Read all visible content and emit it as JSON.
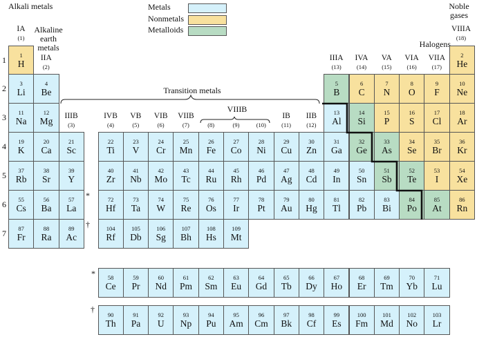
{
  "legend": [
    {
      "label": "Metals",
      "category": "metal",
      "color": "#d5f1fb"
    },
    {
      "label": "Nonmetals",
      "category": "nonmetal",
      "color": "#f8e19e"
    },
    {
      "label": "Metalloids",
      "category": "metalloid",
      "color": "#b8dcc3"
    }
  ],
  "family_labels": {
    "alkali": "Alkali metals",
    "alkaline_earth": "Alkaline earth metals",
    "transition": "Transition metals",
    "halogens": "Halogens",
    "noble_gases": "Noble gases"
  },
  "groups": [
    {
      "group": 1,
      "roman": "IA",
      "number": "(1)"
    },
    {
      "group": 2,
      "roman": "IIA",
      "number": "(2)"
    },
    {
      "group": 3,
      "roman": "IIIB",
      "number": "(3)"
    },
    {
      "group": 4,
      "roman": "IVB",
      "number": "(4)"
    },
    {
      "group": 5,
      "roman": "VB",
      "number": "(5)"
    },
    {
      "group": 6,
      "roman": "VIB",
      "number": "(6)"
    },
    {
      "group": 7,
      "roman": "VIIB",
      "number": "(7)"
    },
    {
      "group": 8,
      "roman": "",
      "number": "(8)"
    },
    {
      "group": 9,
      "roman": "",
      "number": "(9)"
    },
    {
      "group": 10,
      "roman": "",
      "number": "(10)"
    },
    {
      "group": 11,
      "roman": "IB",
      "number": "(11)"
    },
    {
      "group": 12,
      "roman": "IIB",
      "number": "(12)"
    },
    {
      "group": 13,
      "roman": "IIIA",
      "number": "(13)"
    },
    {
      "group": 14,
      "roman": "IVA",
      "number": "(14)"
    },
    {
      "group": 15,
      "roman": "VA",
      "number": "(15)"
    },
    {
      "group": 16,
      "roman": "VIA",
      "number": "(16)"
    },
    {
      "group": 17,
      "roman": "VIIA",
      "number": "(17)"
    },
    {
      "group": 18,
      "roman": "VIIIA",
      "number": "(18)"
    }
  ],
  "viiib_label": "VIIIB",
  "periods": [
    "1",
    "2",
    "3",
    "4",
    "5",
    "6",
    "7"
  ],
  "series_marks": {
    "lanthanide": "*",
    "actinide": "†"
  },
  "elements": [
    {
      "z": 1,
      "s": "H",
      "p": 1,
      "g": 1,
      "c": "nonmetal"
    },
    {
      "z": 2,
      "s": "He",
      "p": 1,
      "g": 18,
      "c": "nonmetal"
    },
    {
      "z": 3,
      "s": "Li",
      "p": 2,
      "g": 1,
      "c": "metal"
    },
    {
      "z": 4,
      "s": "Be",
      "p": 2,
      "g": 2,
      "c": "metal"
    },
    {
      "z": 5,
      "s": "B",
      "p": 2,
      "g": 13,
      "c": "metalloid"
    },
    {
      "z": 6,
      "s": "C",
      "p": 2,
      "g": 14,
      "c": "nonmetal"
    },
    {
      "z": 7,
      "s": "N",
      "p": 2,
      "g": 15,
      "c": "nonmetal"
    },
    {
      "z": 8,
      "s": "O",
      "p": 2,
      "g": 16,
      "c": "nonmetal"
    },
    {
      "z": 9,
      "s": "F",
      "p": 2,
      "g": 17,
      "c": "nonmetal"
    },
    {
      "z": 10,
      "s": "Ne",
      "p": 2,
      "g": 18,
      "c": "nonmetal"
    },
    {
      "z": 11,
      "s": "Na",
      "p": 3,
      "g": 1,
      "c": "metal"
    },
    {
      "z": 12,
      "s": "Mg",
      "p": 3,
      "g": 2,
      "c": "metal"
    },
    {
      "z": 13,
      "s": "Al",
      "p": 3,
      "g": 13,
      "c": "metal"
    },
    {
      "z": 14,
      "s": "Si",
      "p": 3,
      "g": 14,
      "c": "metalloid"
    },
    {
      "z": 15,
      "s": "P",
      "p": 3,
      "g": 15,
      "c": "nonmetal"
    },
    {
      "z": 16,
      "s": "S",
      "p": 3,
      "g": 16,
      "c": "nonmetal"
    },
    {
      "z": 17,
      "s": "Cl",
      "p": 3,
      "g": 17,
      "c": "nonmetal"
    },
    {
      "z": 18,
      "s": "Ar",
      "p": 3,
      "g": 18,
      "c": "nonmetal"
    },
    {
      "z": 19,
      "s": "K",
      "p": 4,
      "g": 1,
      "c": "metal"
    },
    {
      "z": 20,
      "s": "Ca",
      "p": 4,
      "g": 2,
      "c": "metal"
    },
    {
      "z": 21,
      "s": "Sc",
      "p": 4,
      "g": 3,
      "c": "metal"
    },
    {
      "z": 22,
      "s": "Ti",
      "p": 4,
      "g": 4,
      "c": "metal"
    },
    {
      "z": 23,
      "s": "V",
      "p": 4,
      "g": 5,
      "c": "metal"
    },
    {
      "z": 24,
      "s": "Cr",
      "p": 4,
      "g": 6,
      "c": "metal"
    },
    {
      "z": 25,
      "s": "Mn",
      "p": 4,
      "g": 7,
      "c": "metal"
    },
    {
      "z": 26,
      "s": "Fe",
      "p": 4,
      "g": 8,
      "c": "metal"
    },
    {
      "z": 27,
      "s": "Co",
      "p": 4,
      "g": 9,
      "c": "metal"
    },
    {
      "z": 28,
      "s": "Ni",
      "p": 4,
      "g": 10,
      "c": "metal"
    },
    {
      "z": 29,
      "s": "Cu",
      "p": 4,
      "g": 11,
      "c": "metal"
    },
    {
      "z": 30,
      "s": "Zn",
      "p": 4,
      "g": 12,
      "c": "metal"
    },
    {
      "z": 31,
      "s": "Ga",
      "p": 4,
      "g": 13,
      "c": "metal"
    },
    {
      "z": 32,
      "s": "Ge",
      "p": 4,
      "g": 14,
      "c": "metalloid"
    },
    {
      "z": 33,
      "s": "As",
      "p": 4,
      "g": 15,
      "c": "metalloid"
    },
    {
      "z": 34,
      "s": "Se",
      "p": 4,
      "g": 16,
      "c": "nonmetal"
    },
    {
      "z": 35,
      "s": "Br",
      "p": 4,
      "g": 17,
      "c": "nonmetal"
    },
    {
      "z": 36,
      "s": "Kr",
      "p": 4,
      "g": 18,
      "c": "nonmetal"
    },
    {
      "z": 37,
      "s": "Rb",
      "p": 5,
      "g": 1,
      "c": "metal"
    },
    {
      "z": 38,
      "s": "Sr",
      "p": 5,
      "g": 2,
      "c": "metal"
    },
    {
      "z": 39,
      "s": "Y",
      "p": 5,
      "g": 3,
      "c": "metal"
    },
    {
      "z": 40,
      "s": "Zr",
      "p": 5,
      "g": 4,
      "c": "metal"
    },
    {
      "z": 41,
      "s": "Nb",
      "p": 5,
      "g": 5,
      "c": "metal"
    },
    {
      "z": 42,
      "s": "Mo",
      "p": 5,
      "g": 6,
      "c": "metal"
    },
    {
      "z": 43,
      "s": "Tc",
      "p": 5,
      "g": 7,
      "c": "metal"
    },
    {
      "z": 44,
      "s": "Ru",
      "p": 5,
      "g": 8,
      "c": "metal"
    },
    {
      "z": 45,
      "s": "Rh",
      "p": 5,
      "g": 9,
      "c": "metal"
    },
    {
      "z": 46,
      "s": "Pd",
      "p": 5,
      "g": 10,
      "c": "metal"
    },
    {
      "z": 47,
      "s": "Ag",
      "p": 5,
      "g": 11,
      "c": "metal"
    },
    {
      "z": 48,
      "s": "Cd",
      "p": 5,
      "g": 12,
      "c": "metal"
    },
    {
      "z": 49,
      "s": "In",
      "p": 5,
      "g": 13,
      "c": "metal"
    },
    {
      "z": 50,
      "s": "Sn",
      "p": 5,
      "g": 14,
      "c": "metal"
    },
    {
      "z": 51,
      "s": "Sb",
      "p": 5,
      "g": 15,
      "c": "metalloid"
    },
    {
      "z": 52,
      "s": "Te",
      "p": 5,
      "g": 16,
      "c": "metalloid"
    },
    {
      "z": 53,
      "s": "I",
      "p": 5,
      "g": 17,
      "c": "nonmetal"
    },
    {
      "z": 54,
      "s": "Xe",
      "p": 5,
      "g": 18,
      "c": "nonmetal"
    },
    {
      "z": 55,
      "s": "Cs",
      "p": 6,
      "g": 1,
      "c": "metal"
    },
    {
      "z": 56,
      "s": "Ba",
      "p": 6,
      "g": 2,
      "c": "metal"
    },
    {
      "z": 57,
      "s": "La",
      "p": 6,
      "g": 3,
      "c": "metal"
    },
    {
      "z": 72,
      "s": "Hf",
      "p": 6,
      "g": 4,
      "c": "metal"
    },
    {
      "z": 73,
      "s": "Ta",
      "p": 6,
      "g": 5,
      "c": "metal"
    },
    {
      "z": 74,
      "s": "W",
      "p": 6,
      "g": 6,
      "c": "metal"
    },
    {
      "z": 75,
      "s": "Re",
      "p": 6,
      "g": 7,
      "c": "metal"
    },
    {
      "z": 76,
      "s": "Os",
      "p": 6,
      "g": 8,
      "c": "metal"
    },
    {
      "z": 77,
      "s": "Ir",
      "p": 6,
      "g": 9,
      "c": "metal"
    },
    {
      "z": 78,
      "s": "Pt",
      "p": 6,
      "g": 10,
      "c": "metal"
    },
    {
      "z": 79,
      "s": "Au",
      "p": 6,
      "g": 11,
      "c": "metal"
    },
    {
      "z": 80,
      "s": "Hg",
      "p": 6,
      "g": 12,
      "c": "metal"
    },
    {
      "z": 81,
      "s": "Tl",
      "p": 6,
      "g": 13,
      "c": "metal"
    },
    {
      "z": 82,
      "s": "Pb",
      "p": 6,
      "g": 14,
      "c": "metal"
    },
    {
      "z": 83,
      "s": "Bi",
      "p": 6,
      "g": 15,
      "c": "metal"
    },
    {
      "z": 84,
      "s": "Po",
      "p": 6,
      "g": 16,
      "c": "metalloid"
    },
    {
      "z": 85,
      "s": "At",
      "p": 6,
      "g": 17,
      "c": "metalloid"
    },
    {
      "z": 86,
      "s": "Rn",
      "p": 6,
      "g": 18,
      "c": "nonmetal"
    },
    {
      "z": 87,
      "s": "Fr",
      "p": 7,
      "g": 1,
      "c": "metal"
    },
    {
      "z": 88,
      "s": "Ra",
      "p": 7,
      "g": 2,
      "c": "metal"
    },
    {
      "z": 89,
      "s": "Ac",
      "p": 7,
      "g": 3,
      "c": "metal"
    },
    {
      "z": 104,
      "s": "Rf",
      "p": 7,
      "g": 4,
      "c": "metal"
    },
    {
      "z": 105,
      "s": "Db",
      "p": 7,
      "g": 5,
      "c": "metal"
    },
    {
      "z": 106,
      "s": "Sg",
      "p": 7,
      "g": 6,
      "c": "metal"
    },
    {
      "z": 107,
      "s": "Bh",
      "p": 7,
      "g": 7,
      "c": "metal"
    },
    {
      "z": 108,
      "s": "Hs",
      "p": 7,
      "g": 8,
      "c": "metal"
    },
    {
      "z": 109,
      "s": "Mt",
      "p": 7,
      "g": 9,
      "c": "metal"
    }
  ],
  "lanthanides": [
    {
      "z": 58,
      "s": "Ce"
    },
    {
      "z": 59,
      "s": "Pr"
    },
    {
      "z": 60,
      "s": "Nd"
    },
    {
      "z": 61,
      "s": "Pm"
    },
    {
      "z": 62,
      "s": "Sm"
    },
    {
      "z": 63,
      "s": "Eu"
    },
    {
      "z": 64,
      "s": "Gd"
    },
    {
      "z": 65,
      "s": "Tb"
    },
    {
      "z": 66,
      "s": "Dy"
    },
    {
      "z": 67,
      "s": "Ho"
    },
    {
      "z": 68,
      "s": "Er"
    },
    {
      "z": 69,
      "s": "Tm"
    },
    {
      "z": 70,
      "s": "Yb"
    },
    {
      "z": 71,
      "s": "Lu"
    }
  ],
  "actinides": [
    {
      "z": 90,
      "s": "Th"
    },
    {
      "z": 91,
      "s": "Pa"
    },
    {
      "z": 92,
      "s": "U"
    },
    {
      "z": 93,
      "s": "Np"
    },
    {
      "z": 94,
      "s": "Pu"
    },
    {
      "z": 95,
      "s": "Am"
    },
    {
      "z": 96,
      "s": "Cm"
    },
    {
      "z": 97,
      "s": "Bk"
    },
    {
      "z": 98,
      "s": "Cf"
    },
    {
      "z": 99,
      "s": "Es"
    },
    {
      "z": 100,
      "s": "Fm"
    },
    {
      "z": 101,
      "s": "Md"
    },
    {
      "z": 102,
      "s": "No"
    },
    {
      "z": 103,
      "s": "Lr"
    }
  ]
}
